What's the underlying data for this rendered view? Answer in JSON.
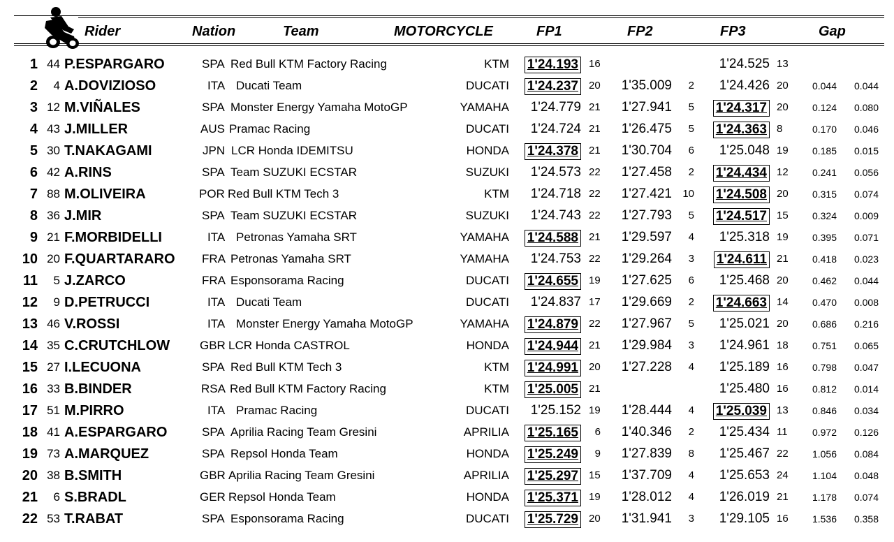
{
  "header": {
    "rider": "Rider",
    "nation": "Nation",
    "team": "Team",
    "motorcycle": "MOTORCYCLE",
    "fp1": "FP1",
    "fp2": "FP2",
    "fp3": "FP3",
    "gap": "Gap"
  },
  "rows": [
    {
      "pos": "1",
      "num": "44",
      "rider": "P.ESPARGARO",
      "nation": "SPA",
      "team": "Red Bull KTM Factory Racing",
      "moto": "KTM",
      "fp1": "1'24.193",
      "fp1_laps": "16",
      "fp1_best": true,
      "fp2": "",
      "fp2_laps": "",
      "fp2_best": false,
      "fp3": "1'24.525",
      "fp3_laps": "13",
      "fp3_best": false,
      "gap1": "",
      "gap2": ""
    },
    {
      "pos": "2",
      "num": "4",
      "rider": "A.DOVIZIOSO",
      "nation": "ITA",
      "team": "Ducati Team",
      "moto": "DUCATI",
      "fp1": "1'24.237",
      "fp1_laps": "20",
      "fp1_best": true,
      "fp2": "1'35.009",
      "fp2_laps": "2",
      "fp2_best": false,
      "fp3": "1'24.426",
      "fp3_laps": "20",
      "fp3_best": false,
      "gap1": "0.044",
      "gap2": "0.044"
    },
    {
      "pos": "3",
      "num": "12",
      "rider": "M.VIÑALES",
      "nation": "SPA",
      "team": "Monster Energy Yamaha MotoGP",
      "moto": "YAMAHA",
      "fp1": "1'24.779",
      "fp1_laps": "21",
      "fp1_best": false,
      "fp2": "1'27.941",
      "fp2_laps": "5",
      "fp2_best": false,
      "fp3": "1'24.317",
      "fp3_laps": "20",
      "fp3_best": true,
      "gap1": "0.124",
      "gap2": "0.080"
    },
    {
      "pos": "4",
      "num": "43",
      "rider": "J.MILLER",
      "nation": "AUS",
      "team": "Pramac Racing",
      "moto": "DUCATI",
      "fp1": "1'24.724",
      "fp1_laps": "21",
      "fp1_best": false,
      "fp2": "1'26.475",
      "fp2_laps": "5",
      "fp2_best": false,
      "fp3": "1'24.363",
      "fp3_laps": "8",
      "fp3_best": true,
      "gap1": "0.170",
      "gap2": "0.046"
    },
    {
      "pos": "5",
      "num": "30",
      "rider": "T.NAKAGAMI",
      "nation": "JPN",
      "team": "LCR Honda IDEMITSU",
      "moto": "HONDA",
      "fp1": "1'24.378",
      "fp1_laps": "21",
      "fp1_best": true,
      "fp2": "1'30.704",
      "fp2_laps": "6",
      "fp2_best": false,
      "fp3": "1'25.048",
      "fp3_laps": "19",
      "fp3_best": false,
      "gap1": "0.185",
      "gap2": "0.015"
    },
    {
      "pos": "6",
      "num": "42",
      "rider": "A.RINS",
      "nation": "SPA",
      "team": "Team SUZUKI ECSTAR",
      "moto": "SUZUKI",
      "fp1": "1'24.573",
      "fp1_laps": "22",
      "fp1_best": false,
      "fp2": "1'27.458",
      "fp2_laps": "2",
      "fp2_best": false,
      "fp3": "1'24.434",
      "fp3_laps": "12",
      "fp3_best": true,
      "gap1": "0.241",
      "gap2": "0.056"
    },
    {
      "pos": "7",
      "num": "88",
      "rider": "M.OLIVEIRA",
      "nation": "POR",
      "team": "Red Bull KTM Tech 3",
      "moto": "KTM",
      "fp1": "1'24.718",
      "fp1_laps": "22",
      "fp1_best": false,
      "fp2": "1'27.421",
      "fp2_laps": "10",
      "fp2_best": false,
      "fp3": "1'24.508",
      "fp3_laps": "20",
      "fp3_best": true,
      "gap1": "0.315",
      "gap2": "0.074"
    },
    {
      "pos": "8",
      "num": "36",
      "rider": "J.MIR",
      "nation": "SPA",
      "team": "Team SUZUKI ECSTAR",
      "moto": "SUZUKI",
      "fp1": "1'24.743",
      "fp1_laps": "22",
      "fp1_best": false,
      "fp2": "1'27.793",
      "fp2_laps": "5",
      "fp2_best": false,
      "fp3": "1'24.517",
      "fp3_laps": "15",
      "fp3_best": true,
      "gap1": "0.324",
      "gap2": "0.009"
    },
    {
      "pos": "9",
      "num": "21",
      "rider": "F.MORBIDELLI",
      "nation": "ITA",
      "team": "Petronas Yamaha SRT",
      "moto": "YAMAHA",
      "fp1": "1'24.588",
      "fp1_laps": "21",
      "fp1_best": true,
      "fp2": "1'29.597",
      "fp2_laps": "4",
      "fp2_best": false,
      "fp3": "1'25.318",
      "fp3_laps": "19",
      "fp3_best": false,
      "gap1": "0.395",
      "gap2": "0.071"
    },
    {
      "pos": "10",
      "num": "20",
      "rider": "F.QUARTARARO",
      "nation": "FRA",
      "team": "Petronas Yamaha SRT",
      "moto": "YAMAHA",
      "fp1": "1'24.753",
      "fp1_laps": "22",
      "fp1_best": false,
      "fp2": "1'29.264",
      "fp2_laps": "3",
      "fp2_best": false,
      "fp3": "1'24.611",
      "fp3_laps": "21",
      "fp3_best": true,
      "gap1": "0.418",
      "gap2": "0.023"
    },
    {
      "pos": "11",
      "num": "5",
      "rider": "J.ZARCO",
      "nation": "FRA",
      "team": "Esponsorama Racing",
      "moto": "DUCATI",
      "fp1": "1'24.655",
      "fp1_laps": "19",
      "fp1_best": true,
      "fp2": "1'27.625",
      "fp2_laps": "6",
      "fp2_best": false,
      "fp3": "1'25.468",
      "fp3_laps": "20",
      "fp3_best": false,
      "gap1": "0.462",
      "gap2": "0.044"
    },
    {
      "pos": "12",
      "num": "9",
      "rider": "D.PETRUCCI",
      "nation": "ITA",
      "team": "Ducati Team",
      "moto": "DUCATI",
      "fp1": "1'24.837",
      "fp1_laps": "17",
      "fp1_best": false,
      "fp2": "1'29.669",
      "fp2_laps": "2",
      "fp2_best": false,
      "fp3": "1'24.663",
      "fp3_laps": "14",
      "fp3_best": true,
      "gap1": "0.470",
      "gap2": "0.008"
    },
    {
      "pos": "13",
      "num": "46",
      "rider": "V.ROSSI",
      "nation": "ITA",
      "team": "Monster Energy Yamaha MotoGP",
      "moto": "YAMAHA",
      "fp1": "1'24.879",
      "fp1_laps": "22",
      "fp1_best": true,
      "fp2": "1'27.967",
      "fp2_laps": "5",
      "fp2_best": false,
      "fp3": "1'25.021",
      "fp3_laps": "20",
      "fp3_best": false,
      "gap1": "0.686",
      "gap2": "0.216"
    },
    {
      "pos": "14",
      "num": "35",
      "rider": "C.CRUTCHLOW",
      "nation": "GBR",
      "team": "LCR Honda CASTROL",
      "moto": "HONDA",
      "fp1": "1'24.944",
      "fp1_laps": "21",
      "fp1_best": true,
      "fp2": "1'29.984",
      "fp2_laps": "3",
      "fp2_best": false,
      "fp3": "1'24.961",
      "fp3_laps": "18",
      "fp3_best": false,
      "gap1": "0.751",
      "gap2": "0.065"
    },
    {
      "pos": "15",
      "num": "27",
      "rider": "I.LECUONA",
      "nation": "SPA",
      "team": "Red Bull KTM Tech 3",
      "moto": "KTM",
      "fp1": "1'24.991",
      "fp1_laps": "20",
      "fp1_best": true,
      "fp2": "1'27.228",
      "fp2_laps": "4",
      "fp2_best": false,
      "fp3": "1'25.189",
      "fp3_laps": "16",
      "fp3_best": false,
      "gap1": "0.798",
      "gap2": "0.047"
    },
    {
      "pos": "16",
      "num": "33",
      "rider": "B.BINDER",
      "nation": "RSA",
      "team": "Red Bull KTM Factory Racing",
      "moto": "KTM",
      "fp1": "1'25.005",
      "fp1_laps": "21",
      "fp1_best": true,
      "fp2": "",
      "fp2_laps": "",
      "fp2_best": false,
      "fp3": "1'25.480",
      "fp3_laps": "16",
      "fp3_best": false,
      "gap1": "0.812",
      "gap2": "0.014"
    },
    {
      "pos": "17",
      "num": "51",
      "rider": "M.PIRRO",
      "nation": "ITA",
      "team": "Pramac Racing",
      "moto": "DUCATI",
      "fp1": "1'25.152",
      "fp1_laps": "19",
      "fp1_best": false,
      "fp2": "1'28.444",
      "fp2_laps": "4",
      "fp2_best": false,
      "fp3": "1'25.039",
      "fp3_laps": "13",
      "fp3_best": true,
      "gap1": "0.846",
      "gap2": "0.034"
    },
    {
      "pos": "18",
      "num": "41",
      "rider": "A.ESPARGARO",
      "nation": "SPA",
      "team": "Aprilia Racing Team Gresini",
      "moto": "APRILIA",
      "fp1": "1'25.165",
      "fp1_laps": "6",
      "fp1_best": true,
      "fp2": "1'40.346",
      "fp2_laps": "2",
      "fp2_best": false,
      "fp3": "1'25.434",
      "fp3_laps": "11",
      "fp3_best": false,
      "gap1": "0.972",
      "gap2": "0.126"
    },
    {
      "pos": "19",
      "num": "73",
      "rider": "A.MARQUEZ",
      "nation": "SPA",
      "team": "Repsol Honda Team",
      "moto": "HONDA",
      "fp1": "1'25.249",
      "fp1_laps": "9",
      "fp1_best": true,
      "fp2": "1'27.839",
      "fp2_laps": "8",
      "fp2_best": false,
      "fp3": "1'25.467",
      "fp3_laps": "22",
      "fp3_best": false,
      "gap1": "1.056",
      "gap2": "0.084"
    },
    {
      "pos": "20",
      "num": "38",
      "rider": "B.SMITH",
      "nation": "GBR",
      "team": "Aprilia Racing Team Gresini",
      "moto": "APRILIA",
      "fp1": "1'25.297",
      "fp1_laps": "15",
      "fp1_best": true,
      "fp2": "1'37.709",
      "fp2_laps": "4",
      "fp2_best": false,
      "fp3": "1'25.653",
      "fp3_laps": "24",
      "fp3_best": false,
      "gap1": "1.104",
      "gap2": "0.048"
    },
    {
      "pos": "21",
      "num": "6",
      "rider": "S.BRADL",
      "nation": "GER",
      "team": "Repsol Honda Team",
      "moto": "HONDA",
      "fp1": "1'25.371",
      "fp1_laps": "19",
      "fp1_best": true,
      "fp2": "1'28.012",
      "fp2_laps": "4",
      "fp2_best": false,
      "fp3": "1'26.019",
      "fp3_laps": "21",
      "fp3_best": false,
      "gap1": "1.178",
      "gap2": "0.074"
    },
    {
      "pos": "22",
      "num": "53",
      "rider": "T.RABAT",
      "nation": "SPA",
      "team": "Esponsorama Racing",
      "moto": "DUCATI",
      "fp1": "1'25.729",
      "fp1_laps": "20",
      "fp1_best": true,
      "fp2": "1'31.941",
      "fp2_laps": "3",
      "fp2_best": false,
      "fp3": "1'29.105",
      "fp3_laps": "16",
      "fp3_best": false,
      "gap1": "1.536",
      "gap2": "0.358"
    }
  ]
}
